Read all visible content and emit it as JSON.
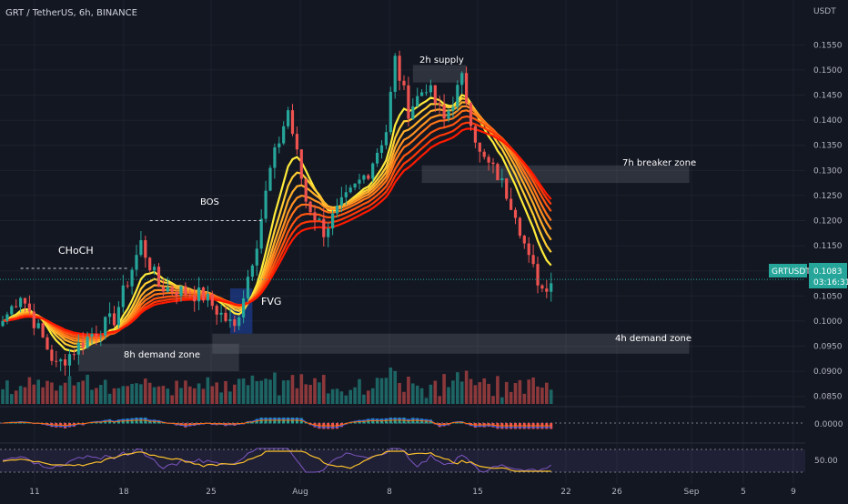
{
  "header": {
    "symbol_title": "GRT / TetherUS, 6h, BINANCE",
    "currency": "USDT"
  },
  "price_tag": {
    "symbol": "GRTUSDT",
    "price": "0.1083",
    "countdown": "03:16:31",
    "color": "#26a69a"
  },
  "annotations": {
    "choch": "CHoCH",
    "bos": "BOS",
    "fvg": "FVG",
    "supply_2h": "2h supply",
    "breaker_7h": "7h breaker zone",
    "demand_4h": "4h demand zone",
    "demand_8h": "8h demand zone"
  },
  "indicator_labels": {
    "macd_zero": "0.0000",
    "rsi_mid": "50.00"
  },
  "colors": {
    "background": "#131722",
    "up": "#26a69a",
    "down": "#ef5350",
    "ribbon_fast": "#ffeb3b",
    "ribbon_slow": "#ff1a00",
    "zone": "#787b86",
    "rsi_line": "#7e57c2",
    "rsi_ma": "#fbc02d"
  },
  "chart_data": {
    "type": "candlestick",
    "y_axis": {
      "ticks": [
        "0.1550",
        "0.1500",
        "0.1450",
        "0.1400",
        "0.1350",
        "0.1300",
        "0.1250",
        "0.1200",
        "0.1150",
        "0.1100",
        "0.1050",
        "0.1000",
        "0.0950",
        "0.0900",
        "0.0850"
      ],
      "range": [
        0.0835,
        0.1585
      ]
    },
    "x_axis": {
      "ticks": [
        "11",
        "18",
        "25",
        "Aug",
        "8",
        "15",
        "22",
        "26",
        "Sep",
        "5",
        "9"
      ]
    },
    "key_points": [
      {
        "x": 0,
        "close": 0.1
      },
      {
        "x": 4,
        "close": 0.1055
      },
      {
        "x": 12,
        "close": 0.091
      },
      {
        "x": 20,
        "close": 0.0975
      },
      {
        "x": 25,
        "close": 0.1005
      },
      {
        "x": 31,
        "close": 0.1155
      },
      {
        "x": 35,
        "close": 0.107
      },
      {
        "x": 45,
        "close": 0.105
      },
      {
        "x": 52,
        "close": 0.0985
      },
      {
        "x": 57,
        "close": 0.116
      },
      {
        "x": 60,
        "close": 0.13
      },
      {
        "x": 64,
        "close": 0.142
      },
      {
        "x": 68,
        "close": 0.124
      },
      {
        "x": 72,
        "close": 0.118
      },
      {
        "x": 76,
        "close": 0.123
      },
      {
        "x": 82,
        "close": 0.13
      },
      {
        "x": 86,
        "close": 0.138
      },
      {
        "x": 88,
        "close": 0.152
      },
      {
        "x": 91,
        "close": 0.142
      },
      {
        "x": 95,
        "close": 0.147
      },
      {
        "x": 99,
        "close": 0.14
      },
      {
        "x": 103,
        "close": 0.148
      },
      {
        "x": 107,
        "close": 0.133
      },
      {
        "x": 111,
        "close": 0.129
      },
      {
        "x": 115,
        "close": 0.122
      },
      {
        "x": 118,
        "close": 0.112
      },
      {
        "x": 121,
        "close": 0.1065
      },
      {
        "x": 123,
        "close": 0.1083
      }
    ],
    "levels": {
      "choch": 0.1105,
      "bos": 0.12
    },
    "zones": [
      {
        "label_key": "supply_2h",
        "x0": 92,
        "x1": 104,
        "top": 0.151,
        "bottom": 0.1475
      },
      {
        "label_key": "breaker_7h",
        "x0": 94,
        "x1": 154,
        "top": 0.131,
        "bottom": 0.1275
      },
      {
        "label_key": "demand_4h",
        "x0": 47,
        "x1": 154,
        "top": 0.0975,
        "bottom": 0.0935
      },
      {
        "label_key": "demand_8h",
        "x0": 17,
        "x1": 53,
        "top": 0.0955,
        "bottom": 0.09
      }
    ],
    "fvg_box": {
      "x0": 51,
      "x1": 56,
      "top": 0.1065,
      "bottom": 0.0975
    },
    "macd_zero": 0.0,
    "rsi_mid": 50.0,
    "grid": true,
    "legend": "none"
  }
}
